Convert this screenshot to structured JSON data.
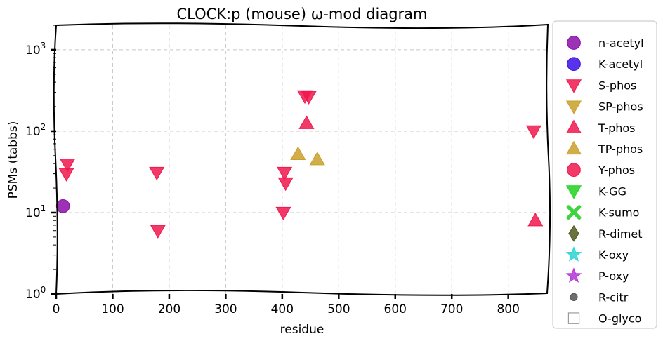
{
  "chart_data": {
    "type": "scatter",
    "title": "CLOCK:p (mouse) ω-mod diagram",
    "xlabel": "residue",
    "ylabel": "PSMs (tabbs)",
    "xlim": [
      0,
      870
    ],
    "ylim": [
      1,
      2000
    ],
    "yscale": "log",
    "grid": true,
    "legend_position": "outside-right",
    "x_ticks": [
      "0",
      "100",
      "200",
      "300",
      "400",
      "500",
      "600",
      "700",
      "800"
    ],
    "x_tick_values": [
      0,
      100,
      200,
      300,
      400,
      500,
      600,
      700,
      800
    ],
    "y_ticks": [
      {
        "base": "10",
        "exp": "0",
        "value": 1
      },
      {
        "base": "10",
        "exp": "1",
        "value": 10
      },
      {
        "base": "10",
        "exp": "2",
        "value": 100
      },
      {
        "base": "10",
        "exp": "3",
        "value": 1000
      }
    ],
    "series": [
      {
        "name": "n-acetyl",
        "marker": "circle",
        "color": "#8b0fa8",
        "points": [
          [
            12,
            12
          ]
        ]
      },
      {
        "name": "K-acetyl",
        "marker": "circle",
        "color": "#3a10e5",
        "points": []
      },
      {
        "name": "S-phos",
        "marker": "triangle-down",
        "color": "#f0184e",
        "points": [
          [
            20,
            39
          ],
          [
            18,
            30
          ],
          [
            178,
            31
          ],
          [
            180,
            6
          ],
          [
            404,
            31
          ],
          [
            406,
            23
          ],
          [
            402,
            10
          ],
          [
            440,
            270
          ],
          [
            447,
            265
          ],
          [
            845,
            100
          ]
        ]
      },
      {
        "name": "SP-phos",
        "marker": "triangle-down",
        "color": "#c9a02a",
        "points": []
      },
      {
        "name": "T-phos",
        "marker": "triangle-up",
        "color": "#f0184e",
        "points": [
          [
            443,
            125
          ],
          [
            848,
            8
          ]
        ]
      },
      {
        "name": "TP-phos",
        "marker": "triangle-up",
        "color": "#c9a02a",
        "points": [
          [
            428,
            52
          ],
          [
            462,
            45
          ]
        ]
      },
      {
        "name": "Y-phos",
        "marker": "circle",
        "color": "#f0184e",
        "points": []
      },
      {
        "name": "K-GG",
        "marker": "triangle-down",
        "color": "#1fd41f",
        "points": []
      },
      {
        "name": "K-sumo",
        "marker": "x",
        "color": "#3fd43f",
        "points": []
      },
      {
        "name": "R-dimet",
        "marker": "diamond",
        "color": "#4d5a1e",
        "points": []
      },
      {
        "name": "K-oxy",
        "marker": "star",
        "color": "#2ad4d4",
        "points": []
      },
      {
        "name": "P-oxy",
        "marker": "star",
        "color": "#b433d8",
        "points": []
      },
      {
        "name": "R-citr",
        "marker": "small-circle",
        "color": "#555555",
        "points": []
      },
      {
        "name": "O-glyco",
        "marker": "square-open",
        "color": "#888888",
        "points": []
      }
    ]
  }
}
